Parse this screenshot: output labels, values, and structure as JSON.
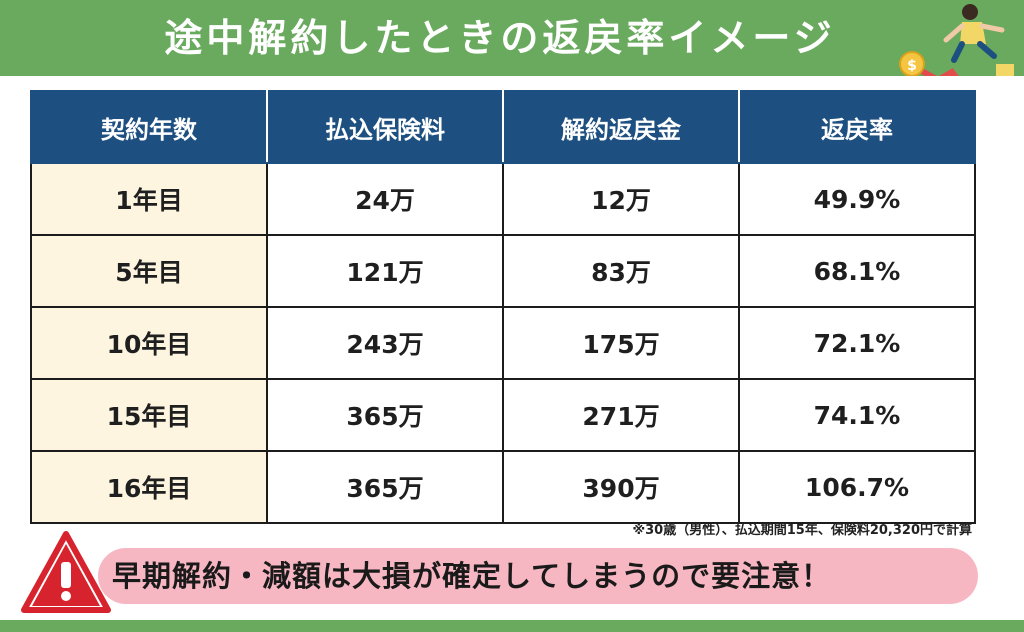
{
  "title": "途中解約したときの返戻率イメージ",
  "table": {
    "headers": [
      "契約年数",
      "払込保険料",
      "解約返戻金",
      "返戻率"
    ],
    "rows": [
      [
        "1年目",
        "24万",
        "12万",
        "49.9%"
      ],
      [
        "5年目",
        "121万",
        "83万",
        "68.1%"
      ],
      [
        "10年目",
        "243万",
        "175万",
        "72.1%"
      ],
      [
        "15年目",
        "365万",
        "271万",
        "74.1%"
      ],
      [
        "16年目",
        "365万",
        "390万",
        "106.7%"
      ]
    ]
  },
  "note": "※30歳（男性）、払込期間15年、保険料20,320円で計算",
  "banner": "早期解約・減額は大損が確定してしまうので要注意！",
  "colors": {
    "green": "#6aaa5e",
    "header_blue": "#1d4f80",
    "year_cell": "#fdf5e0",
    "banner_pink": "#f7b7c2",
    "warning_red": "#d7232e"
  },
  "icons": {
    "warning": "warning-triangle-icon",
    "illustration": "falling-chart-person-illustration"
  }
}
